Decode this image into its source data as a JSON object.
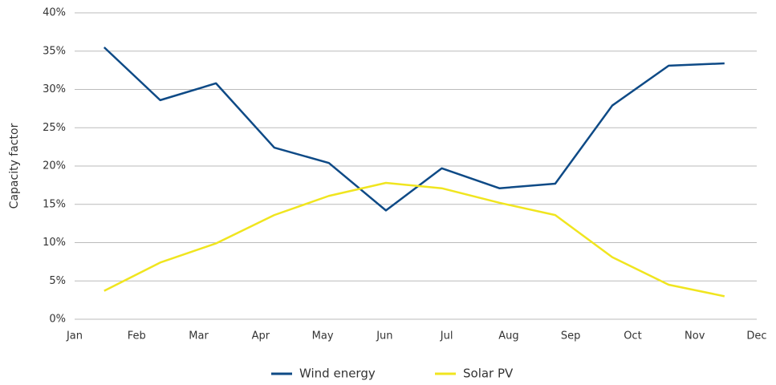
{
  "chart_data": {
    "type": "line",
    "ylabel": "Capacity factor",
    "x": [
      0.476,
      1.38,
      2.28,
      3.22,
      4.1,
      5.02,
      5.92,
      6.85,
      7.75,
      8.67,
      9.58,
      10.48
    ],
    "xlim": [
      0,
      11
    ],
    "xticks": [
      {
        "value": 0,
        "label": "Jan"
      },
      {
        "value": 1,
        "label": "Feb"
      },
      {
        "value": 2,
        "label": "Mar"
      },
      {
        "value": 3,
        "label": "Apr"
      },
      {
        "value": 4,
        "label": "May"
      },
      {
        "value": 5,
        "label": "Jun"
      },
      {
        "value": 6,
        "label": "Jul"
      },
      {
        "value": 7,
        "label": "Aug"
      },
      {
        "value": 8,
        "label": "Sep"
      },
      {
        "value": 9,
        "label": "Oct"
      },
      {
        "value": 10,
        "label": "Nov"
      },
      {
        "value": 11,
        "label": "Dec"
      }
    ],
    "ylim": [
      0,
      40
    ],
    "yticks": [
      {
        "value": 0,
        "label": "0%"
      },
      {
        "value": 5,
        "label": "5%"
      },
      {
        "value": 10,
        "label": "10%"
      },
      {
        "value": 15,
        "label": "15%"
      },
      {
        "value": 20,
        "label": "20%"
      },
      {
        "value": 25,
        "label": "25%"
      },
      {
        "value": 30,
        "label": "30%"
      },
      {
        "value": 35,
        "label": "35%"
      },
      {
        "value": 40,
        "label": "40%"
      }
    ],
    "grid": true,
    "legend": "bottom",
    "series": [
      {
        "name": "Wind energy",
        "color": "#0e4a86",
        "values": [
          35.5,
          28.6,
          30.8,
          22.4,
          20.4,
          14.2,
          19.7,
          17.1,
          17.7,
          27.9,
          33.1,
          33.4
        ]
      },
      {
        "name": "Solar PV",
        "color": "#f0e51f",
        "values": [
          3.7,
          7.4,
          9.9,
          13.6,
          16.1,
          17.8,
          17.1,
          15.2,
          13.6,
          8.1,
          4.5,
          3.0
        ]
      }
    ]
  }
}
